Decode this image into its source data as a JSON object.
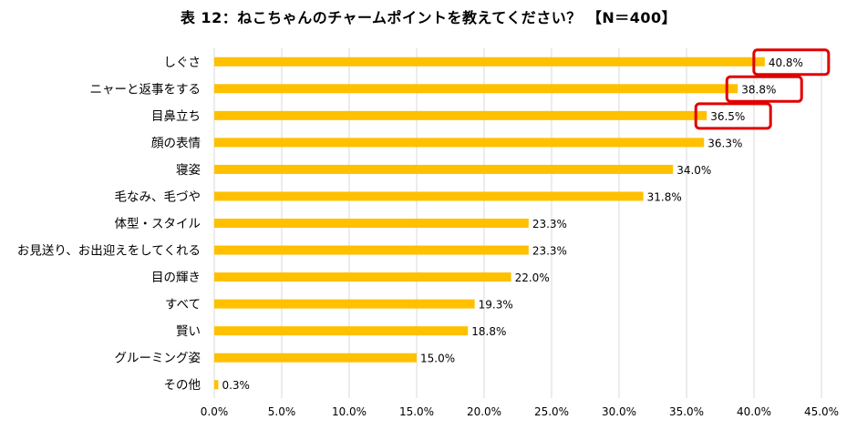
{
  "chart_data": {
    "type": "bar",
    "orientation": "horizontal",
    "title": "表 12：ねこちゃんのチャームポイントを教えてください？ 【N＝400】",
    "categories": [
      "しぐさ",
      "ニャーと返事をする",
      "目鼻立ち",
      "顔の表情",
      "寝姿",
      "毛なみ、毛づや",
      "体型・スタイル",
      "お見送り、お出迎えをしてくれる",
      "目の輝き",
      "すべて",
      "賢い",
      "グルーミング姿",
      "その他"
    ],
    "values": [
      40.8,
      38.8,
      36.5,
      36.3,
      34.0,
      31.8,
      23.3,
      23.3,
      22.0,
      19.3,
      18.8,
      15.0,
      0.3
    ],
    "value_labels": [
      "40.8%",
      "38.8%",
      "36.5%",
      "36.3%",
      "34.0%",
      "31.8%",
      "23.3%",
      "23.3%",
      "22.0%",
      "19.3%",
      "18.8%",
      "15.0%",
      "0.3%"
    ],
    "highlighted_indices": [
      0,
      1,
      2
    ],
    "xlim": [
      0,
      45
    ],
    "xticks": [
      "0.0%",
      "5.0%",
      "10.0%",
      "15.0%",
      "20.0%",
      "25.0%",
      "30.0%",
      "35.0%",
      "40.0%",
      "45.0%"
    ],
    "grid": "vertical",
    "xlabel": "",
    "ylabel": "",
    "colors": {
      "bar": "#FFC000",
      "grid": "#D9D9D9",
      "highlight": "#E00000"
    }
  }
}
